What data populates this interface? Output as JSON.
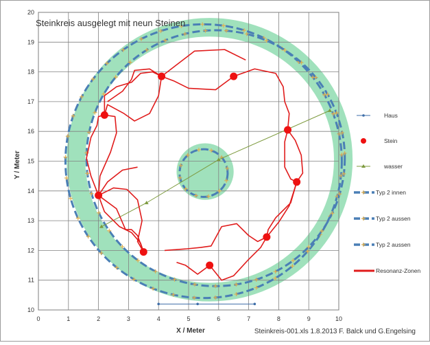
{
  "chart_data": {
    "type": "scatter",
    "title": "Steinkreis ausgelegt mit neun Steinen",
    "xlabel": "X / Meter",
    "ylabel": "Y / Meter",
    "xlim": [
      0,
      10
    ],
    "ylim": [
      10,
      20
    ],
    "xticks": [
      "0",
      "1",
      "2",
      "3",
      "4",
      "5",
      "6",
      "7",
      "8",
      "9",
      "10"
    ],
    "yticks": [
      "10",
      "11",
      "12",
      "13",
      "14",
      "15",
      "16",
      "17",
      "18",
      "19",
      "20"
    ],
    "grid": true,
    "legend_position": "right",
    "footnote": "Steinkreis-001.xls   1.8.2013 F. Balck und G.Engelsing",
    "colors": {
      "zone_fill": "#8fdcb0",
      "typ2": "#4a7fb5",
      "marker": "#e0b050",
      "stein": "#ee1111",
      "resonanz": "#e01b1b",
      "haus": "#3e6ea8",
      "wasser": "#7d9a3e",
      "grid": "#808080"
    },
    "series": [
      {
        "name": "Haus",
        "x": [
          4.0,
          5.3,
          7.2
        ],
        "y": [
          10.2,
          10.2,
          10.2
        ]
      },
      {
        "name": "Stein",
        "x": [
          4.1,
          6.5,
          8.3,
          8.6,
          7.6,
          5.7,
          3.5,
          2.0,
          2.2
        ],
        "y": [
          17.85,
          17.85,
          16.05,
          14.3,
          12.45,
          11.5,
          11.95,
          13.85,
          16.55
        ]
      },
      {
        "name": "wasser",
        "x": [
          2.1,
          3.6,
          6.0,
          9.7
        ],
        "y": [
          12.8,
          13.6,
          15.05,
          16.7
        ]
      },
      {
        "name": "Typ 2 innen",
        "center": [
          5.5,
          14.6
        ],
        "radius": 0.8
      },
      {
        "name": "Typ 2 aussen",
        "center": [
          5.9,
          15.1
        ],
        "radius": 4.3
      },
      {
        "name": "Typ 2 aussen",
        "center": [
          5.5,
          15.0
        ],
        "radius": 4.6
      },
      {
        "name": "Resonanz-Zonen",
        "paths": [
          [
            [
              4.1,
              17.85
            ],
            [
              5.2,
              18.7
            ],
            [
              6.2,
              18.75
            ],
            [
              6.9,
              18.4
            ]
          ],
          [
            [
              6.5,
              17.85
            ],
            [
              5.9,
              17.4
            ],
            [
              5.0,
              17.45
            ],
            [
              4.5,
              17.7
            ],
            [
              4.1,
              17.85
            ]
          ],
          [
            [
              6.5,
              17.85
            ],
            [
              7.2,
              18.1
            ],
            [
              7.9,
              17.95
            ],
            [
              8.15,
              17.5
            ],
            [
              8.2,
              17.0
            ],
            [
              8.35,
              16.6
            ],
            [
              8.3,
              16.05
            ]
          ],
          [
            [
              8.3,
              16.05
            ],
            [
              8.2,
              15.65
            ],
            [
              8.2,
              14.8
            ],
            [
              8.4,
              14.4
            ],
            [
              8.6,
              14.3
            ]
          ],
          [
            [
              8.6,
              14.3
            ],
            [
              8.8,
              14.6
            ],
            [
              8.75,
              15.2
            ],
            [
              8.55,
              15.7
            ],
            [
              8.3,
              16.05
            ]
          ],
          [
            [
              8.6,
              14.3
            ],
            [
              8.4,
              13.6
            ],
            [
              7.9,
              13.1
            ],
            [
              7.65,
              12.7
            ],
            [
              7.6,
              12.45
            ]
          ],
          [
            [
              7.6,
              12.45
            ],
            [
              8.0,
              12.95
            ],
            [
              8.35,
              13.5
            ],
            [
              8.6,
              14.3
            ]
          ],
          [
            [
              7.6,
              12.45
            ],
            [
              7.3,
              12.3
            ],
            [
              7.0,
              12.5
            ],
            [
              6.6,
              12.9
            ],
            [
              6.1,
              12.8
            ],
            [
              5.75,
              12.15
            ],
            [
              5.4,
              12.1
            ],
            [
              4.9,
              12.05
            ],
            [
              4.2,
              12.0
            ]
          ],
          [
            [
              5.7,
              11.5
            ],
            [
              6.1,
              11.0
            ],
            [
              6.5,
              11.15
            ],
            [
              7.0,
              11.7
            ],
            [
              7.4,
              12.1
            ],
            [
              7.6,
              12.45
            ]
          ],
          [
            [
              5.7,
              11.5
            ],
            [
              5.3,
              11.2
            ],
            [
              4.9,
              11.5
            ],
            [
              4.6,
              11.6
            ]
          ],
          [
            [
              3.5,
              11.95
            ],
            [
              3.3,
              12.5
            ],
            [
              3.1,
              12.7
            ],
            [
              2.9,
              12.7
            ],
            [
              2.6,
              13.4
            ],
            [
              2.0,
              13.85
            ]
          ],
          [
            [
              2.0,
              13.85
            ],
            [
              2.5,
              14.1
            ],
            [
              2.95,
              14.05
            ],
            [
              3.3,
              13.7
            ],
            [
              3.45,
              13.0
            ],
            [
              3.3,
              12.3
            ],
            [
              3.5,
              11.95
            ]
          ],
          [
            [
              2.0,
              13.85
            ],
            [
              2.3,
              14.3
            ],
            [
              2.8,
              14.7
            ],
            [
              3.3,
              14.8
            ]
          ],
          [
            [
              2.0,
              13.85
            ],
            [
              2.05,
              14.5
            ],
            [
              2.4,
              15.3
            ],
            [
              2.6,
              15.95
            ],
            [
              2.55,
              16.5
            ],
            [
              2.2,
              16.55
            ]
          ],
          [
            [
              2.2,
              16.55
            ],
            [
              2.2,
              17.2
            ],
            [
              2.6,
              17.5
            ],
            [
              3.1,
              17.65
            ],
            [
              3.4,
              17.95
            ],
            [
              3.8,
              18.0
            ],
            [
              4.1,
              17.85
            ]
          ],
          [
            [
              2.2,
              16.55
            ],
            [
              2.3,
              16.9
            ],
            [
              2.85,
              16.6
            ],
            [
              3.2,
              16.35
            ],
            [
              3.7,
              16.6
            ],
            [
              4.0,
              17.2
            ],
            [
              4.1,
              17.85
            ]
          ],
          [
            [
              4.1,
              17.85
            ],
            [
              3.7,
              18.1
            ],
            [
              3.2,
              18.05
            ],
            [
              3.1,
              17.75
            ],
            [
              2.8,
              17.35
            ],
            [
              2.3,
              17.0
            ]
          ],
          [
            [
              2.2,
              16.55
            ],
            [
              2.0,
              16.5
            ],
            [
              1.95,
              16.2
            ],
            [
              1.75,
              15.8
            ],
            [
              1.6,
              15.1
            ],
            [
              1.75,
              14.5
            ],
            [
              2.0,
              13.85
            ]
          ],
          [
            [
              2.0,
              13.85
            ],
            [
              2.2,
              13.3
            ],
            [
              2.7,
              12.8
            ],
            [
              3.1,
              12.6
            ],
            [
              3.4,
              12.25
            ],
            [
              3.5,
              11.95
            ]
          ]
        ]
      }
    ]
  }
}
